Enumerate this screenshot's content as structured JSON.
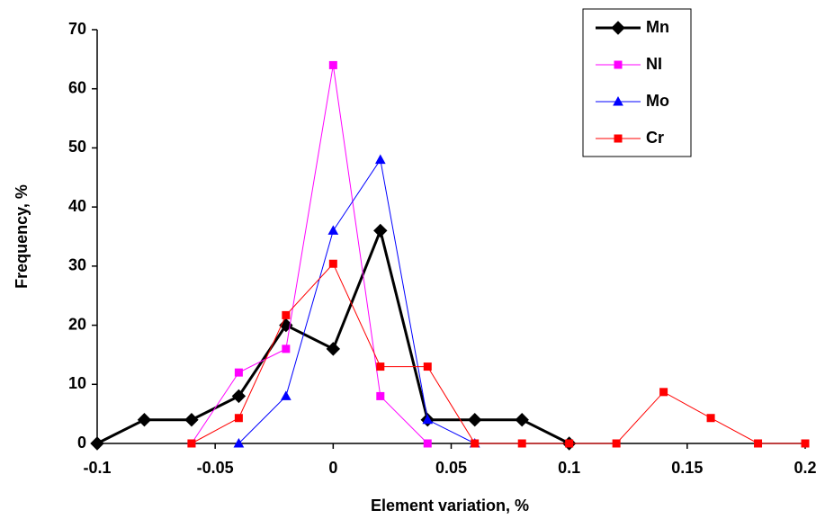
{
  "chart_data": {
    "type": "line",
    "x_label": "Element variation, %",
    "y_label": "Frequency, %",
    "xlim": [
      -0.1,
      0.2
    ],
    "xticks": [
      -0.1,
      -0.05,
      0,
      0.05,
      0.1,
      0.15,
      0.2
    ],
    "ylim": [
      0,
      70
    ],
    "yticks": [
      0,
      10,
      20,
      30,
      40,
      50,
      60,
      70
    ],
    "grid": false,
    "legend": "upper right",
    "series": [
      {
        "name": "Mn",
        "color": "#000000",
        "marker": "diamond",
        "line_width": 3,
        "x": [
          -0.1,
          -0.08,
          -0.06,
          -0.04,
          -0.02,
          0,
          0.02,
          0.04,
          0.06,
          0.08,
          0.1
        ],
        "values": [
          0,
          4,
          4,
          8,
          20,
          16,
          36,
          4,
          4,
          4,
          0
        ]
      },
      {
        "name": "NI",
        "color": "#ff00ff",
        "marker": "square",
        "line_width": 1,
        "x": [
          -0.06,
          -0.04,
          -0.02,
          0,
          0.02,
          0.04
        ],
        "values": [
          0,
          12,
          16,
          64,
          8,
          0
        ]
      },
      {
        "name": "Mo",
        "color": "#0000ff",
        "marker": "triangle",
        "line_width": 1,
        "x": [
          -0.04,
          -0.02,
          0,
          0.02,
          0.04,
          0.06
        ],
        "values": [
          0,
          8,
          36,
          48,
          4,
          0
        ]
      },
      {
        "name": "Cr",
        "color": "#ff0000",
        "marker": "square",
        "line_width": 1,
        "x": [
          -0.06,
          -0.04,
          -0.02,
          0,
          0.02,
          0.04,
          0.06,
          0.08,
          0.1,
          0.12,
          0.14,
          0.16,
          0.18,
          0.2
        ],
        "values": [
          0,
          4.3,
          21.7,
          30.4,
          13,
          13,
          0,
          0,
          0,
          0,
          8.7,
          4.3,
          0,
          0
        ]
      }
    ]
  }
}
